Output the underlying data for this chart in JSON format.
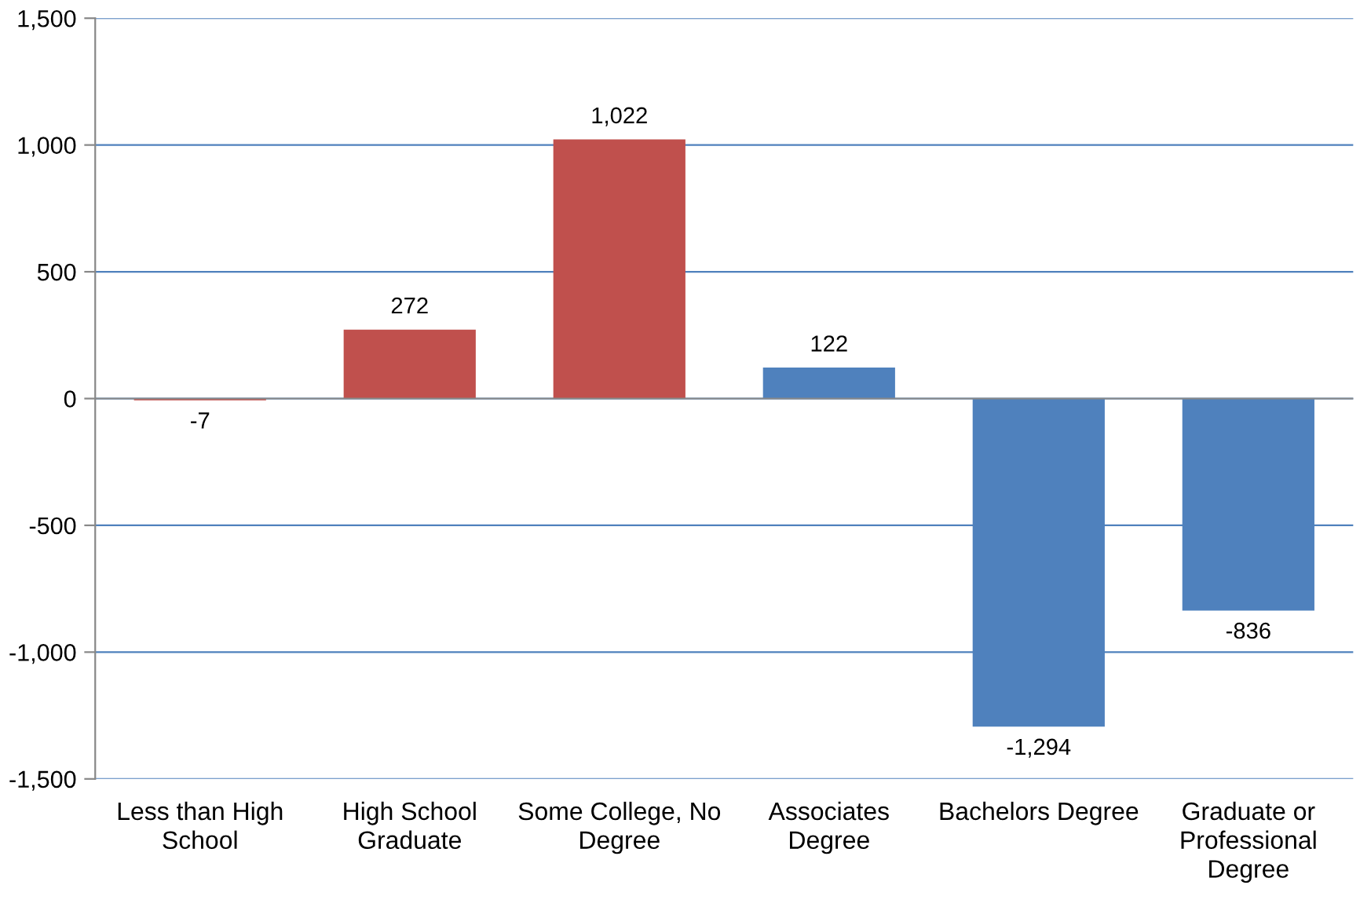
{
  "chart_data": {
    "type": "bar",
    "categories": [
      "Less than High School",
      "High School Graduate",
      "Some College, No Degree",
      "Associates Degree",
      "Bachelors Degree",
      "Graduate or Professional Degree"
    ],
    "values": [
      -7,
      272,
      1022,
      122,
      -1294,
      -836
    ],
    "colors": [
      "#c0504d",
      "#c0504d",
      "#c0504d",
      "#4f81bd",
      "#4f81bd",
      "#4f81bd"
    ],
    "value_labels": [
      "-7",
      "272",
      "1,022",
      "122",
      "-1,294",
      "-836"
    ],
    "ylim": [
      -1500,
      1500
    ],
    "yticks": [
      {
        "value": -1500,
        "label": "-1,500"
      },
      {
        "value": -1000,
        "label": "-1,000"
      },
      {
        "value": -500,
        "label": "-500"
      },
      0,
      500,
      {
        "value": 1000,
        "label": "1,000"
      },
      {
        "value": 1500,
        "label": "1,500"
      }
    ],
    "grid": "y"
  }
}
